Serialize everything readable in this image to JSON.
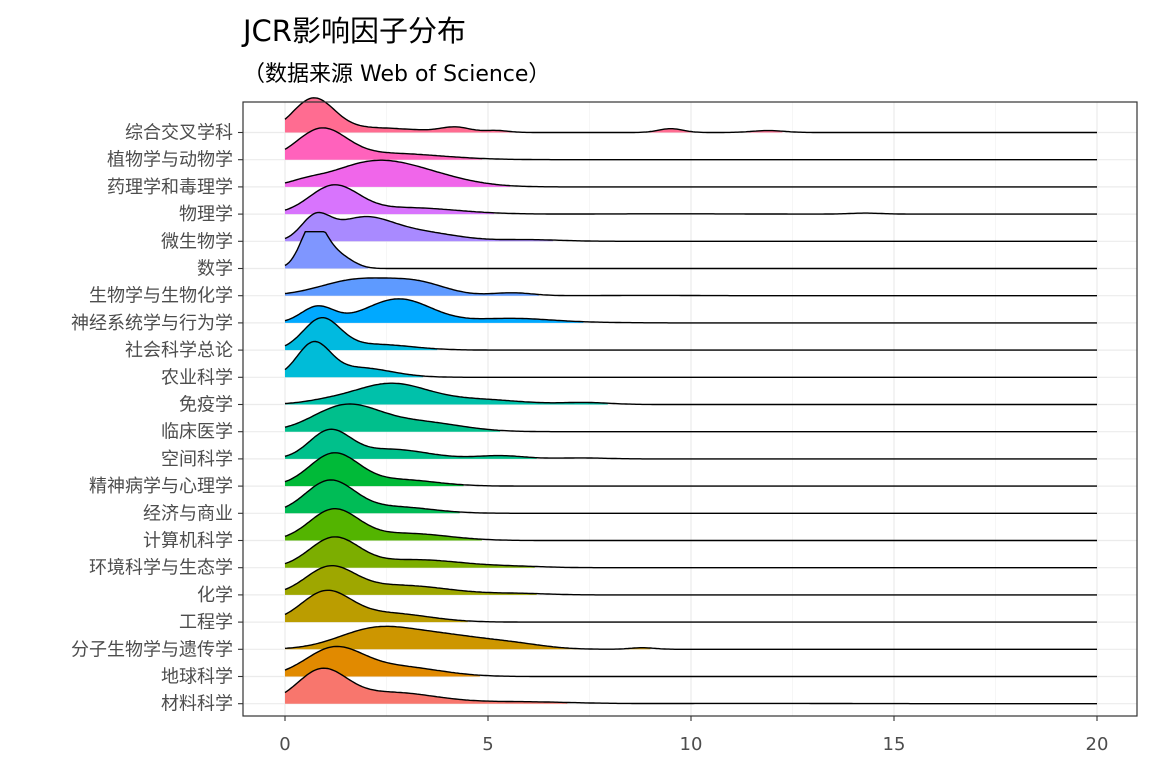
{
  "chart_data": {
    "type": "ridgeline",
    "title": "JCR影响因子分布",
    "subtitle": "（数据来源 Web of Science）",
    "x_ticks": [
      "0",
      "5",
      "10",
      "15",
      "20"
    ],
    "xlim": [
      -1,
      20.6
    ],
    "grid": true,
    "categories": [
      "综合交叉学科",
      "植物学与动物学",
      "药理学和毒理学",
      "物理学",
      "微生物学",
      "数学",
      "生物学与生物化学",
      "神经系统学与行为学",
      "社会科学总论",
      "农业科学",
      "免疫学",
      "临床医学",
      "空间科学",
      "精神病学与心理学",
      "经济与商业",
      "计算机科学",
      "环境科学与生态学",
      "化学",
      "工程学",
      "分子生物学与遗传学",
      "地球科学",
      "材料科学"
    ],
    "colors": [
      "#FF6C91",
      "#FF62BC",
      "#F066EA",
      "#D874FD",
      "#A98AFF",
      "#7F96FF",
      "#5E9AFF",
      "#00A9FF",
      "#00BAE0",
      "#00BCD8",
      "#00C1AA",
      "#00BF8C",
      "#00C08B",
      "#00BA38",
      "#00BC56",
      "#53B400",
      "#7CAE00",
      "#9EA700",
      "#BB9D00",
      "#CD9600",
      "#E18A00",
      "#F8766D"
    ],
    "series": [
      {
        "name": "综合交叉学科",
        "peaks": [
          [
            0.7,
            0.5,
            1.0
          ],
          [
            2.0,
            1.2,
            0.15
          ],
          [
            4.2,
            0.35,
            0.15
          ],
          [
            5.2,
            0.3,
            0.06
          ],
          [
            9.5,
            0.3,
            0.12
          ],
          [
            11.9,
            0.4,
            0.06
          ]
        ]
      },
      {
        "name": "植物学与动物学",
        "peaks": [
          [
            0.9,
            0.6,
            0.9
          ],
          [
            2.5,
            1.3,
            0.2
          ]
        ]
      },
      {
        "name": "药理学和毒理学",
        "peaks": [
          [
            2.1,
            1.0,
            0.7
          ],
          [
            3.5,
            1.0,
            0.3
          ],
          [
            0.5,
            0.4,
            0.1
          ]
        ]
      },
      {
        "name": "物理学",
        "peaks": [
          [
            1.2,
            0.6,
            0.85
          ],
          [
            3.0,
            1.2,
            0.2
          ],
          [
            9.5,
            1.5,
            0.01
          ],
          [
            14.3,
            0.4,
            0.03
          ]
        ]
      },
      {
        "name": "微生物学",
        "peaks": [
          [
            0.75,
            0.35,
            0.7
          ],
          [
            1.9,
            0.7,
            0.68
          ],
          [
            3.3,
            0.9,
            0.28
          ],
          [
            6.0,
            0.8,
            0.05
          ]
        ]
      },
      {
        "name": "数学",
        "peaks": [
          [
            0.7,
            0.3,
            1.4
          ],
          [
            1.3,
            0.35,
            0.4
          ]
        ]
      },
      {
        "name": "生物学与生物化学",
        "peaks": [
          [
            1.8,
            0.9,
            0.5
          ],
          [
            3.3,
            0.7,
            0.35
          ],
          [
            5.6,
            0.5,
            0.09
          ],
          [
            9.0,
            1.0,
            0.01
          ]
        ]
      },
      {
        "name": "神经系统学与行为学",
        "peaks": [
          [
            0.8,
            0.4,
            0.5
          ],
          [
            2.8,
            0.8,
            0.75
          ],
          [
            5.5,
            0.9,
            0.12
          ],
          [
            6.5,
            1.2,
            0.03
          ]
        ]
      },
      {
        "name": "社会科学总论",
        "peaks": [
          [
            0.9,
            0.45,
            0.95
          ],
          [
            2.2,
            0.9,
            0.18
          ]
        ]
      },
      {
        "name": "农业科学",
        "peaks": [
          [
            0.7,
            0.4,
            1.0
          ],
          [
            1.8,
            0.8,
            0.3
          ]
        ]
      },
      {
        "name": "免疫学",
        "peaks": [
          [
            2.6,
            0.9,
            0.65
          ],
          [
            4.8,
            1.0,
            0.15
          ],
          [
            7.4,
            0.6,
            0.06
          ],
          [
            1.0,
            0.6,
            0.08
          ]
        ]
      },
      {
        "name": "临床医学",
        "peaks": [
          [
            1.5,
            0.8,
            0.8
          ],
          [
            3.3,
            1.0,
            0.3
          ]
        ]
      },
      {
        "name": "空间科学",
        "peaks": [
          [
            1.1,
            0.5,
            0.85
          ],
          [
            2.6,
            0.9,
            0.3
          ],
          [
            5.3,
            0.6,
            0.1
          ],
          [
            7.3,
            0.6,
            0.03
          ]
        ]
      },
      {
        "name": "精神病学与心理学",
        "peaks": [
          [
            1.2,
            0.6,
            1.0
          ],
          [
            2.8,
            0.9,
            0.2
          ]
        ]
      },
      {
        "name": "经济与商业",
        "peaks": [
          [
            1.1,
            0.6,
            1.0
          ],
          [
            2.7,
            0.9,
            0.2
          ]
        ]
      },
      {
        "name": "计算机科学",
        "peaks": [
          [
            1.2,
            0.6,
            0.95
          ],
          [
            3.0,
            1.0,
            0.22
          ]
        ]
      },
      {
        "name": "环境科学与生态学",
        "peaks": [
          [
            1.2,
            0.6,
            0.9
          ],
          [
            3.2,
            1.2,
            0.25
          ],
          [
            5.8,
            0.7,
            0.03
          ]
        ]
      },
      {
        "name": "化学",
        "peaks": [
          [
            1.1,
            0.6,
            0.8
          ],
          [
            2.8,
            1.2,
            0.3
          ],
          [
            5.8,
            0.7,
            0.04
          ]
        ]
      },
      {
        "name": "工程学",
        "peaks": [
          [
            1.0,
            0.6,
            0.9
          ],
          [
            2.5,
            1.0,
            0.28
          ]
        ]
      },
      {
        "name": "分子生物学与遗传学",
        "peaks": [
          [
            2.2,
            0.9,
            0.6
          ],
          [
            3.9,
            1.0,
            0.4
          ],
          [
            5.6,
            0.8,
            0.15
          ],
          [
            8.8,
            0.3,
            0.05
          ]
        ]
      },
      {
        "name": "地球科学",
        "peaks": [
          [
            1.2,
            0.7,
            0.85
          ],
          [
            2.8,
            1.0,
            0.3
          ]
        ]
      },
      {
        "name": "材料科学",
        "peaks": [
          [
            0.9,
            0.6,
            1.0
          ],
          [
            2.6,
            1.1,
            0.35
          ],
          [
            5.8,
            1.2,
            0.06
          ],
          [
            11.5,
            2.0,
            0.01
          ]
        ]
      }
    ]
  }
}
